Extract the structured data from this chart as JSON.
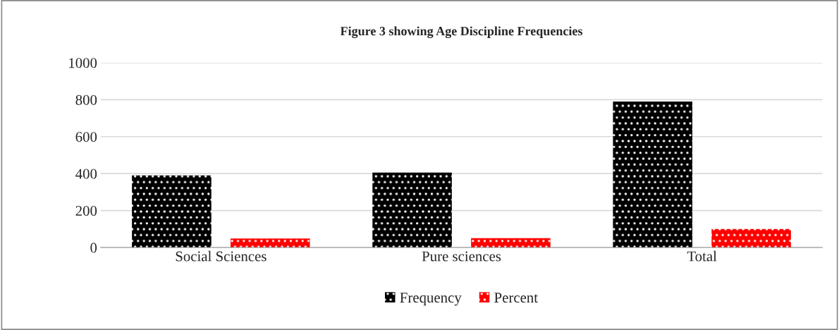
{
  "chart_data": {
    "type": "bar",
    "title": "Figure 3 showing Age Discipline Frequencies",
    "categories": [
      "Social Sciences",
      "Pure sciences",
      "Total"
    ],
    "series": [
      {
        "name": "Frequency",
        "color": "#000000",
        "values": [
          390,
          405,
          790
        ]
      },
      {
        "name": "Percent",
        "color": "#ff0000",
        "values": [
          49,
          51,
          100
        ]
      }
    ],
    "ylim": [
      0,
      1000
    ],
    "yticks": [
      0,
      200,
      400,
      600,
      800,
      1000
    ],
    "grid": "y",
    "legend": "bottom"
  }
}
